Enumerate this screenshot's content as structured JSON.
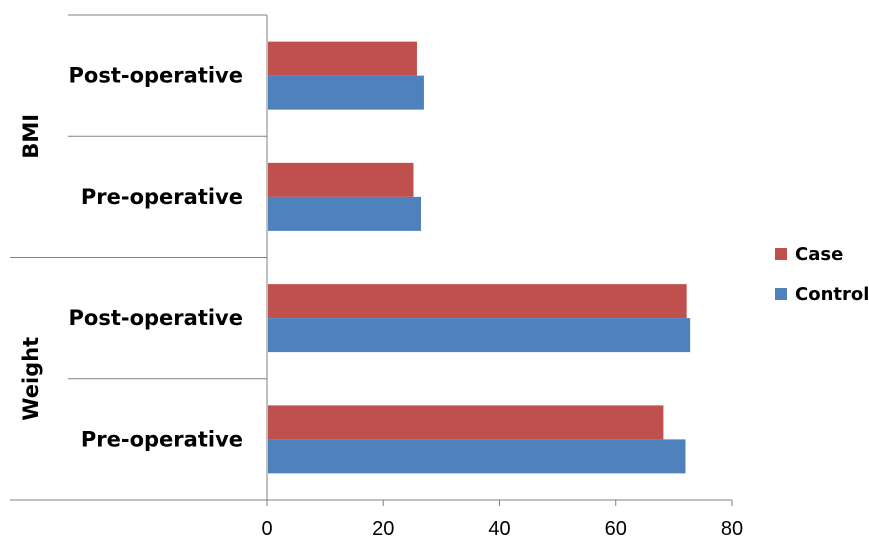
{
  "chart_data": {
    "type": "bar",
    "orientation": "horizontal",
    "groups": [
      {
        "name": "BMI",
        "categories": [
          "Post-operative",
          "Pre-operative"
        ]
      },
      {
        "name": "Weight",
        "categories": [
          "Post-operative",
          "Pre-operative"
        ]
      }
    ],
    "categories": [
      "BMI Post-operative",
      "BMI Pre-operative",
      "Weight Post-operative",
      "Weight Pre-operative"
    ],
    "series": [
      {
        "name": "Case",
        "color": "#c0504d",
        "values": [
          25.8,
          25.2,
          72.2,
          68.2
        ]
      },
      {
        "name": "Control",
        "color": "#4f81bd",
        "values": [
          27.0,
          26.5,
          72.8,
          72.0
        ]
      }
    ],
    "xlim": [
      0,
      80
    ],
    "xticks": [
      0,
      20,
      40,
      60,
      80
    ],
    "title": "",
    "xlabel": "",
    "ylabel": "",
    "grid": false,
    "legend": "right"
  }
}
